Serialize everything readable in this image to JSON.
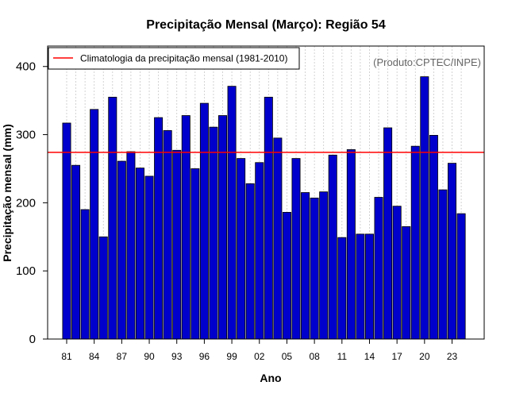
{
  "chart_data": {
    "type": "bar",
    "title": "Precipitação Mensal (Março): Região 54",
    "xlabel": "Ano",
    "ylabel": "Precipitação mensal (mm)",
    "ylim": [
      0,
      430
    ],
    "yticks": [
      0,
      100,
      200,
      300,
      400
    ],
    "years": [
      1981,
      1982,
      1983,
      1984,
      1985,
      1986,
      1987,
      1988,
      1989,
      1990,
      1991,
      1992,
      1993,
      1994,
      1995,
      1996,
      1997,
      1998,
      1999,
      2000,
      2001,
      2002,
      2003,
      2004,
      2005,
      2006,
      2007,
      2008,
      2009,
      2010,
      2011,
      2012,
      2013,
      2014,
      2015,
      2016,
      2017,
      2018,
      2019,
      2020,
      2021,
      2022,
      2023,
      2024
    ],
    "values": [
      317,
      255,
      190,
      337,
      150,
      355,
      261,
      275,
      251,
      239,
      325,
      306,
      277,
      328,
      250,
      346,
      311,
      328,
      371,
      265,
      228,
      259,
      355,
      295,
      186,
      265,
      215,
      207,
      216,
      270,
      149,
      278,
      154,
      154,
      208,
      310,
      195,
      165,
      283,
      385,
      299,
      219,
      258,
      184
    ],
    "xtick_labels": [
      "81",
      "84",
      "87",
      "90",
      "93",
      "96",
      "99",
      "02",
      "05",
      "08",
      "11",
      "14",
      "17",
      "20",
      "23"
    ],
    "climatology": {
      "value": 274,
      "label": "Climatologia da precipitação mensal (1981-2010)",
      "color": "#ff0000"
    },
    "bar_color": "#0000cd",
    "legend_position": "top-left",
    "credit": "(Produto:CPTEC/INPE)",
    "grid": "vertical-dotted"
  }
}
